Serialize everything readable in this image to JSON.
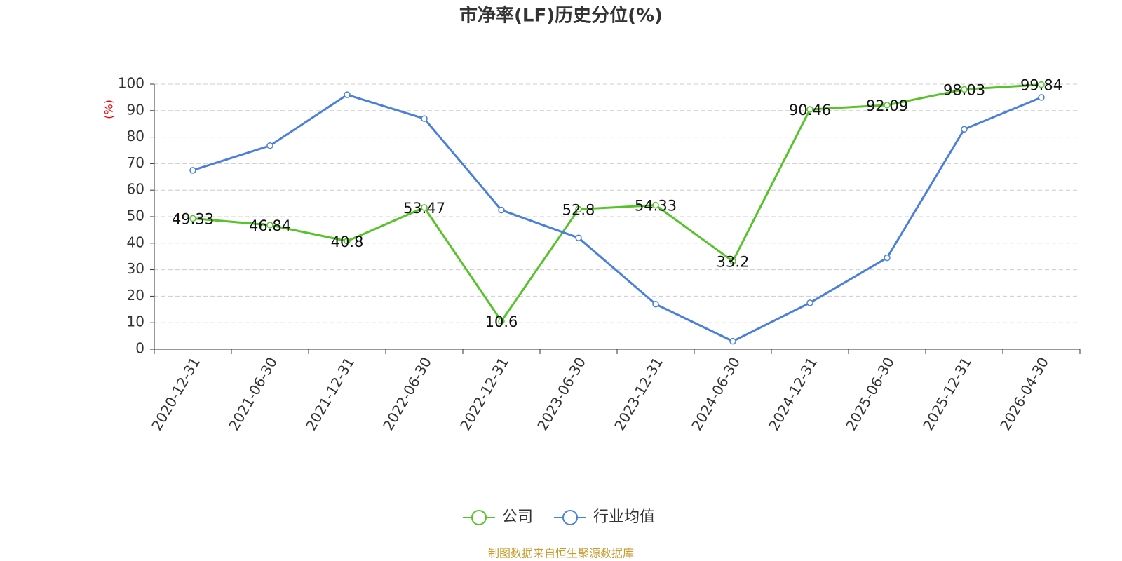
{
  "chart_data": {
    "type": "line",
    "title": "市净率(LF)历史分位(%)",
    "y_label": "(%)",
    "categories": [
      "2020-12-31",
      "2021-06-30",
      "2021-12-31",
      "2022-06-30",
      "2022-12-31",
      "2023-06-30",
      "2023-12-31",
      "2024-06-30",
      "2024-12-31",
      "2025-06-30",
      "2025-12-31",
      "2026-04-30"
    ],
    "series": [
      {
        "name": "公司",
        "color": "#58c22b",
        "values": [
          49.33,
          46.84,
          40.8,
          53.47,
          10.6,
          52.8,
          54.33,
          33.2,
          90.46,
          92.09,
          98.03,
          99.84
        ],
        "show_labels": true
      },
      {
        "name": "行业均值",
        "color": "#4a7fdc",
        "values": [
          67.5,
          76.8,
          96,
          87,
          52.5,
          42,
          17,
          3,
          17.5,
          34.5,
          83,
          95
        ],
        "show_labels": false
      }
    ],
    "ylim": [
      0,
      100
    ],
    "yticks": [
      0,
      10,
      20,
      30,
      40,
      50,
      60,
      70,
      80,
      90,
      100
    ],
    "grid": true,
    "legend": "bottom",
    "source": "制图数据来自恒生聚源数据库"
  }
}
